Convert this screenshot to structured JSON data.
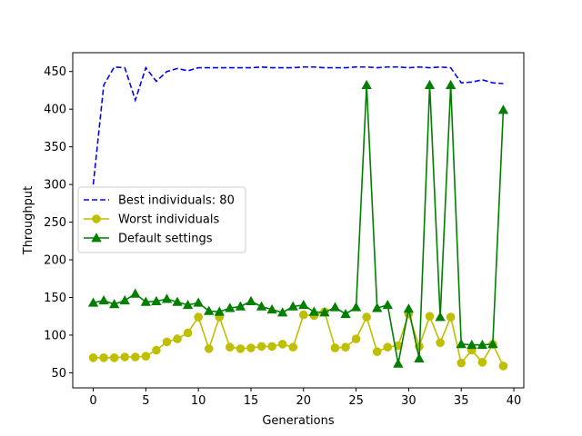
{
  "chart_data": {
    "type": "line",
    "xlabel": "Generations",
    "ylabel": "Throughput",
    "xlim": [
      -1.95,
      40.95
    ],
    "ylim": [
      30,
      475
    ],
    "xticks": [
      0,
      5,
      10,
      15,
      20,
      25,
      30,
      35,
      40
    ],
    "yticks": [
      50,
      100,
      150,
      200,
      250,
      300,
      350,
      400,
      450
    ],
    "grid": false,
    "legend_position": "center-left",
    "x": [
      0,
      1,
      2,
      3,
      4,
      5,
      6,
      7,
      8,
      9,
      10,
      11,
      12,
      13,
      14,
      15,
      16,
      17,
      18,
      19,
      20,
      21,
      22,
      23,
      24,
      25,
      26,
      27,
      28,
      29,
      30,
      31,
      32,
      33,
      34,
      35,
      36,
      37,
      38,
      39
    ],
    "series": [
      {
        "name": "Best individuals: 80",
        "color": "#0000ff",
        "linestyle": "dashed",
        "marker": "none",
        "values": [
          300,
          432,
          456,
          455,
          412,
          455,
          437,
          450,
          454,
          451,
          455,
          455,
          455,
          455,
          455,
          455,
          456,
          455,
          455,
          455,
          456,
          456,
          455,
          455,
          455,
          456,
          456,
          455,
          456,
          456,
          455,
          456,
          455,
          456,
          455,
          435,
          436,
          439,
          435,
          434
        ]
      },
      {
        "name": "Worst individuals",
        "color": "#bfbf00",
        "linestyle": "solid",
        "marker": "circle",
        "values": [
          70,
          70,
          70,
          71,
          71,
          72,
          80,
          91,
          95,
          103,
          124,
          82,
          124,
          84,
          82,
          83,
          85,
          85,
          88,
          84,
          127,
          126,
          131,
          83,
          84,
          95,
          124,
          78,
          84,
          86,
          128,
          85,
          125,
          90,
          124,
          63,
          80,
          64,
          88,
          59
        ]
      },
      {
        "name": "Default settings",
        "color": "#007f00",
        "linestyle": "solid",
        "marker": "triangle",
        "values": [
          143,
          146,
          141,
          146,
          155,
          144,
          145,
          148,
          144,
          140,
          143,
          132,
          131,
          136,
          138,
          145,
          138,
          134,
          130,
          138,
          140,
          131,
          130,
          137,
          128,
          137,
          432,
          136,
          140,
          62,
          135,
          69,
          432,
          124,
          432,
          88,
          87,
          87,
          88,
          399
        ]
      }
    ]
  }
}
